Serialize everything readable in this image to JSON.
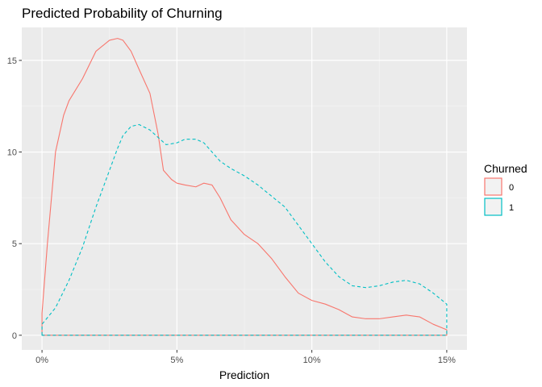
{
  "chart_data": {
    "type": "line",
    "subtype": "density",
    "title": "Predicted Probability of Churning",
    "xlabel": "Prediction",
    "ylabel": "",
    "xlim": [
      -0.0075,
      0.1575
    ],
    "ylim": [
      -0.8,
      16.8
    ],
    "x_ticks": [
      0,
      0.05,
      0.1,
      0.15
    ],
    "x_tick_labels": [
      "0%",
      "5%",
      "10%",
      "15%"
    ],
    "y_ticks": [
      0,
      5,
      10,
      15
    ],
    "y_tick_labels": [
      "0",
      "5",
      "10",
      "15"
    ],
    "grid": true,
    "legend": {
      "title": "Churned",
      "position": "right"
    },
    "series": [
      {
        "name": "0",
        "color": "#F8766D",
        "dash": "solid",
        "x": [
          0,
          0.002,
          0.005,
          0.008,
          0.01,
          0.015,
          0.02,
          0.025,
          0.028,
          0.03,
          0.033,
          0.036,
          0.04,
          0.043,
          0.045,
          0.048,
          0.05,
          0.053,
          0.057,
          0.06,
          0.063,
          0.066,
          0.07,
          0.075,
          0.08,
          0.085,
          0.09,
          0.095,
          0.1,
          0.105,
          0.11,
          0.115,
          0.12,
          0.125,
          0.13,
          0.135,
          0.14,
          0.145,
          0.15
        ],
        "y": [
          1.2,
          5.0,
          10.0,
          12.0,
          12.8,
          14.0,
          15.5,
          16.1,
          16.2,
          16.1,
          15.5,
          14.5,
          13.2,
          11.0,
          9.0,
          8.5,
          8.3,
          8.2,
          8.1,
          8.3,
          8.2,
          7.5,
          6.3,
          5.5,
          5.0,
          4.2,
          3.2,
          2.3,
          1.9,
          1.7,
          1.4,
          1.0,
          0.9,
          0.9,
          1.0,
          1.1,
          1.0,
          0.6,
          0.3
        ]
      },
      {
        "name": "1",
        "color": "#00BFC4",
        "dash": "dashed",
        "x": [
          0,
          0.005,
          0.01,
          0.015,
          0.02,
          0.025,
          0.028,
          0.03,
          0.033,
          0.036,
          0.04,
          0.043,
          0.046,
          0.05,
          0.053,
          0.057,
          0.06,
          0.063,
          0.066,
          0.07,
          0.075,
          0.08,
          0.085,
          0.09,
          0.095,
          0.1,
          0.105,
          0.11,
          0.115,
          0.12,
          0.125,
          0.13,
          0.135,
          0.14,
          0.145,
          0.15
        ],
        "y": [
          0.6,
          1.5,
          3.0,
          4.8,
          7.0,
          9.0,
          10.2,
          10.9,
          11.4,
          11.5,
          11.2,
          10.8,
          10.4,
          10.5,
          10.7,
          10.7,
          10.5,
          10.0,
          9.5,
          9.1,
          8.7,
          8.2,
          7.6,
          7.0,
          6.0,
          5.0,
          4.0,
          3.2,
          2.7,
          2.6,
          2.7,
          2.9,
          3.0,
          2.8,
          2.3,
          1.7
        ]
      }
    ]
  }
}
